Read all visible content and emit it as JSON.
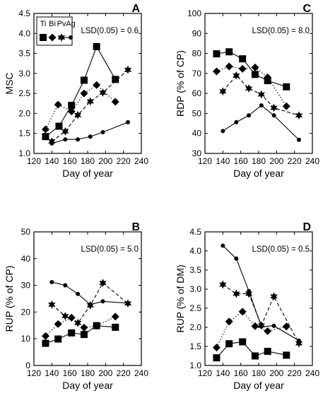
{
  "chart_data": [
    {
      "type": "line",
      "panel_letter": "A",
      "ylabel": "MSC",
      "xlabel": "Day of year",
      "xlim": [
        120,
        240
      ],
      "ylim": [
        1.0,
        4.5
      ],
      "xticks": [
        "120",
        "140",
        "160",
        "180",
        "200",
        "220",
        "240"
      ],
      "yticks": [
        "1.0",
        "1.5",
        "2.0",
        "2.5",
        "3.0",
        "3.5",
        "4.0",
        "4.5"
      ],
      "annotation": "LSD(0.05) = 0.6",
      "legend": {
        "placement": "top-left",
        "labels": [
          "Ti",
          "Bi",
          "Pv",
          "Ag"
        ]
      },
      "series": [
        {
          "name": "Ti",
          "marker": "square",
          "line": "solid",
          "x": [
            133,
            148,
            162,
            176,
            190,
            211
          ],
          "y": [
            1.42,
            1.68,
            2.2,
            2.83,
            3.67,
            2.85
          ]
        },
        {
          "name": "Bi",
          "marker": "diamond",
          "line": "dotted",
          "x": [
            133,
            147,
            162,
            176,
            190,
            211
          ],
          "y": [
            1.6,
            2.22,
            2.05,
            2.5,
            2.71,
            2.29
          ]
        },
        {
          "name": "Pv",
          "marker": "star",
          "line": "dashed",
          "x": [
            140,
            155,
            169,
            183,
            197,
            225
          ],
          "y": [
            1.3,
            1.55,
            1.96,
            2.3,
            2.52,
            3.09
          ]
        },
        {
          "name": "Ag",
          "marker": "circle",
          "line": "solid",
          "x": [
            140,
            155,
            169,
            183,
            197,
            225
          ],
          "y": [
            1.25,
            1.35,
            1.35,
            1.42,
            1.53,
            1.78
          ]
        }
      ]
    },
    {
      "type": "line",
      "panel_letter": "C",
      "ylabel": "RDP (% of CP)",
      "xlabel": "Day of year",
      "xlim": [
        120,
        240
      ],
      "ylim": [
        30,
        100
      ],
      "xticks": [
        "120",
        "140",
        "160",
        "180",
        "200",
        "220",
        "240"
      ],
      "yticks": [
        "30",
        "40",
        "50",
        "60",
        "70",
        "80",
        "90",
        "100"
      ],
      "annotation": "LSD(0.05) = 8.0",
      "series": [
        {
          "name": "Ti",
          "marker": "square",
          "line": "solid",
          "x": [
            133,
            147,
            162,
            176,
            190,
            211
          ],
          "y": [
            79.8,
            80.8,
            77.3,
            69.5,
            66.4,
            63.3
          ]
        },
        {
          "name": "Bi",
          "marker": "diamond",
          "line": "dotted",
          "x": [
            133,
            147,
            162,
            176,
            190,
            211
          ],
          "y": [
            71.0,
            73.5,
            72.3,
            73.0,
            68.0,
            53.6
          ]
        },
        {
          "name": "Pv",
          "marker": "star",
          "line": "dashed",
          "x": [
            140,
            155,
            169,
            183,
            197,
            225
          ],
          "y": [
            61.0,
            69.0,
            62.5,
            59.5,
            52.8,
            49.0
          ]
        },
        {
          "name": "Ag",
          "marker": "circle",
          "line": "solid",
          "x": [
            140,
            155,
            169,
            183,
            197,
            225
          ],
          "y": [
            41.2,
            45.6,
            49.0,
            54.0,
            49.0,
            36.8
          ]
        }
      ]
    },
    {
      "type": "line",
      "panel_letter": "B",
      "ylabel": "RUP (% of CP)",
      "xlabel": "Day of year",
      "xlim": [
        120,
        240
      ],
      "ylim": [
        0,
        50
      ],
      "xticks": [
        "120",
        "140",
        "160",
        "180",
        "200",
        "220",
        "240"
      ],
      "yticks": [
        "0",
        "10",
        "20",
        "30",
        "40",
        "50"
      ],
      "annotation": "LSD(0.05) = 5.0",
      "series": [
        {
          "name": "Ti",
          "marker": "square",
          "line": "solid",
          "x": [
            133,
            147,
            162,
            176,
            190,
            211
          ],
          "y": [
            8.3,
            9.9,
            12.2,
            11.6,
            14.9,
            14.3
          ]
        },
        {
          "name": "Bi",
          "marker": "diamond",
          "line": "dotted",
          "x": [
            133,
            147,
            162,
            176,
            190,
            211
          ],
          "y": [
            11.0,
            15.5,
            17.9,
            14.2,
            14.8,
            18.3
          ]
        },
        {
          "name": "Pv",
          "marker": "star",
          "line": "dashed",
          "x": [
            140,
            155,
            169,
            183,
            197,
            225
          ],
          "y": [
            22.8,
            18.5,
            15.9,
            22.5,
            30.9,
            23.2
          ]
        },
        {
          "name": "Ag",
          "marker": "circle",
          "line": "solid",
          "x": [
            140,
            155,
            169,
            183,
            197,
            225
          ],
          "y": [
            31.2,
            30.0,
            26.8,
            22.8,
            24.0,
            23.3
          ]
        }
      ]
    },
    {
      "type": "line",
      "panel_letter": "D",
      "ylabel": "RUP (% of DM)",
      "xlabel": "Day of year",
      "xlim": [
        120,
        240
      ],
      "ylim": [
        1.0,
        4.5
      ],
      "xticks": [
        "120",
        "140",
        "160",
        "180",
        "200",
        "220",
        "240"
      ],
      "yticks": [
        "1.0",
        "1.5",
        "2.0",
        "2.5",
        "3.0",
        "3.5",
        "4.0",
        "4.5"
      ],
      "annotation": "LSD(0.05) = 0.5",
      "series": [
        {
          "name": "Ti",
          "marker": "square",
          "line": "solid",
          "x": [
            133,
            147,
            162,
            176,
            190,
            211
          ],
          "y": [
            1.2,
            1.57,
            1.62,
            1.25,
            1.37,
            1.27
          ]
        },
        {
          "name": "Bi",
          "marker": "diamond",
          "line": "dotted",
          "x": [
            133,
            147,
            162,
            176,
            190,
            211
          ],
          "y": [
            1.47,
            2.15,
            2.41,
            2.03,
            1.9,
            2.02
          ]
        },
        {
          "name": "Pv",
          "marker": "star",
          "line": "dashed",
          "x": [
            140,
            155,
            169,
            183,
            197,
            225
          ],
          "y": [
            3.12,
            2.88,
            2.88,
            2.05,
            2.81,
            1.58
          ]
        },
        {
          "name": "Ag",
          "marker": "circle",
          "line": "solid",
          "x": [
            140,
            155,
            169,
            183,
            197,
            225
          ],
          "y": [
            4.14,
            3.8,
            2.95,
            2.02,
            2.04,
            1.65
          ]
        }
      ]
    }
  ]
}
